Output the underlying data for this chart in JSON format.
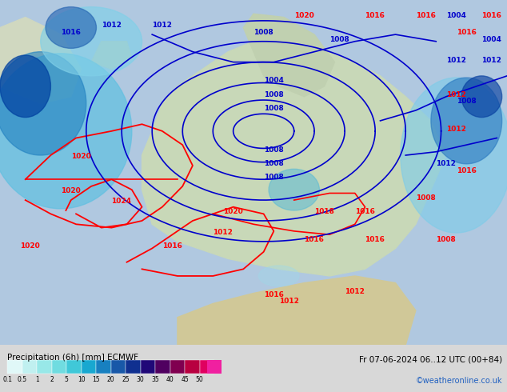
{
  "title_left": "Precipitation (6h) [mm] ECMWF",
  "title_right": "Fr 07-06-2024 06..12 UTC (00+84)",
  "credit": "©weatheronline.co.uk",
  "colorbar_levels": [
    0.1,
    0.5,
    1,
    2,
    5,
    10,
    15,
    20,
    25,
    30,
    35,
    40,
    45,
    50
  ],
  "colorbar_colors": [
    "#e0f8f8",
    "#c0f0f0",
    "#98e8e8",
    "#70dce0",
    "#40c8d8",
    "#18a8d0",
    "#1880c0",
    "#1858a8",
    "#103090",
    "#200878",
    "#500060",
    "#800050",
    "#b80040",
    "#e00060",
    "#f020a0"
  ],
  "background_color": "#f0f0f0",
  "map_bg": "#c8e8c8",
  "fig_width": 6.34,
  "fig_height": 4.9,
  "dpi": 100
}
